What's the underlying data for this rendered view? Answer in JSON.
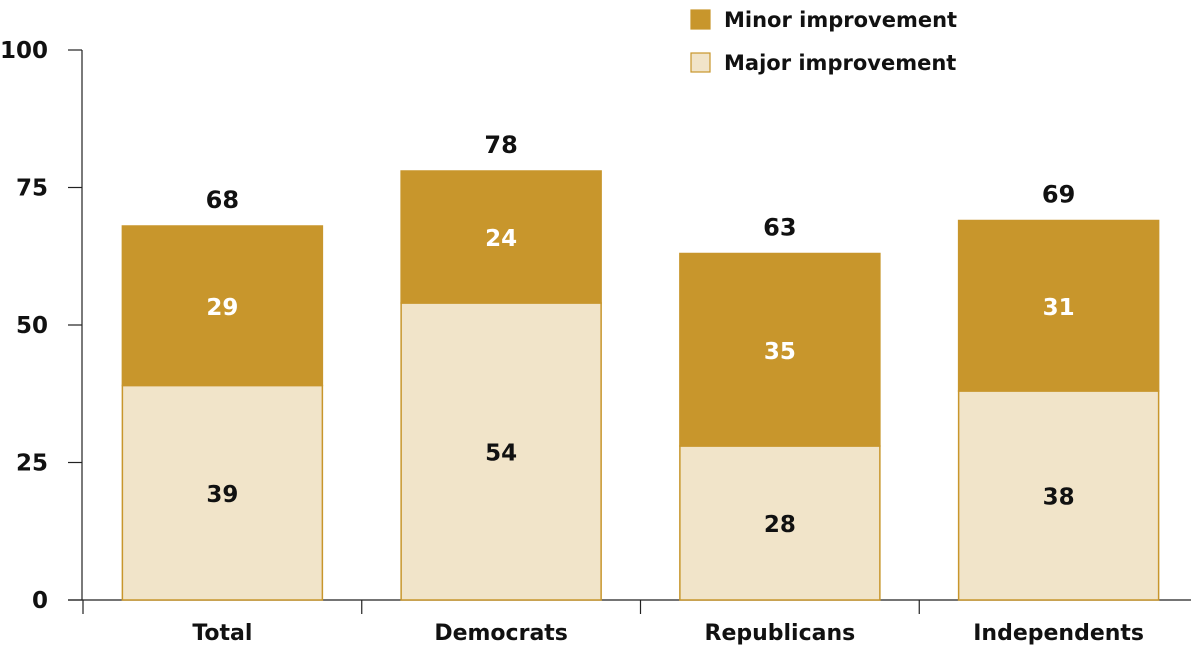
{
  "chart_data": {
    "type": "bar",
    "stacked": true,
    "categories": [
      "Total",
      "Democrats",
      "Republicans",
      "Independents"
    ],
    "series": [
      {
        "name": "Major improvement",
        "values": [
          39,
          54,
          28,
          38
        ],
        "color": "#f1e4c9",
        "label_color": "#111111"
      },
      {
        "name": "Minor improvement",
        "values": [
          29,
          24,
          35,
          31
        ],
        "color": "#c8962c",
        "label_color": "#ffffff"
      }
    ],
    "totals": [
      68,
      78,
      63,
      69
    ],
    "ylim": [
      0,
      100
    ],
    "yticks": [
      0,
      25,
      50,
      75,
      100
    ],
    "grid": false,
    "legend_position": "top-right",
    "bar_outline_color": "#c8962c",
    "title": "",
    "xlabel": "",
    "ylabel": ""
  }
}
